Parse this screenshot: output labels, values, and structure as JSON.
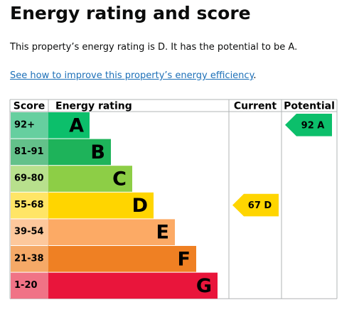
{
  "header": {
    "title": "Energy rating and score"
  },
  "intro": "This property’s energy rating is D. It has the potential to be A.",
  "link": {
    "text": "See how to improve this property’s energy efficiency",
    "suffix": "."
  },
  "table": {
    "columns": [
      "Score",
      "Energy rating",
      "Current",
      "Potential"
    ],
    "rows": [
      {
        "score": "92+",
        "letter": "A",
        "color": "#0cbf6b",
        "score_color": "#66cf9f"
      },
      {
        "score": "81-91",
        "letter": "B",
        "color": "#1eb35a",
        "score_color": "#63c18a"
      },
      {
        "score": "69-80",
        "letter": "C",
        "color": "#8dce46",
        "score_color": "#b8e08d"
      },
      {
        "score": "55-68",
        "letter": "D",
        "color": "#ffd500",
        "score_color": "#ffe566"
      },
      {
        "score": "39-54",
        "letter": "E",
        "color": "#fcaa65",
        "score_color": "#fdc89c"
      },
      {
        "score": "21-38",
        "letter": "F",
        "color": "#ef8023",
        "score_color": "#f5a967"
      },
      {
        "score": "1-20",
        "letter": "G",
        "color": "#e9153b",
        "score_color": "#f07386"
      }
    ],
    "current": {
      "label": "67 D",
      "row": 3
    },
    "potential": {
      "label": "92 A",
      "row": 0
    }
  }
}
